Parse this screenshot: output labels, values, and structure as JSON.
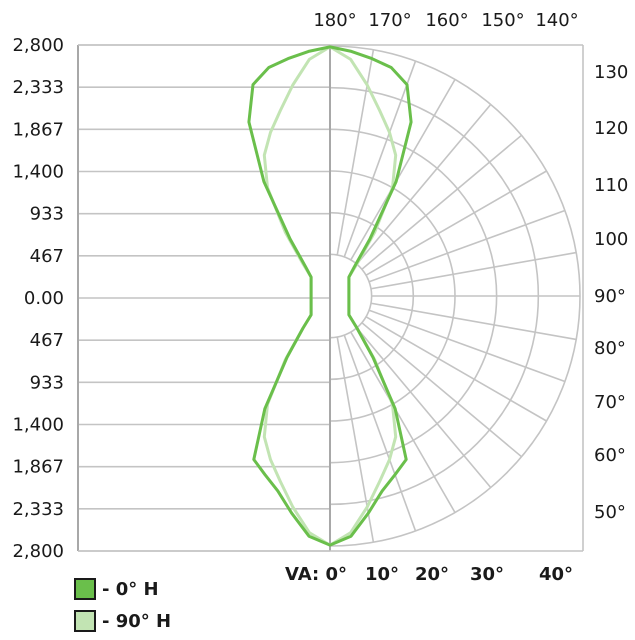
{
  "chart_data": {
    "type": "polar-luminous-intensity",
    "left_axis_labels": [
      "2,800",
      "2,333",
      "1,867",
      "1,400",
      "933",
      "467",
      "0.00",
      "467",
      "933",
      "1,400",
      "1,867",
      "2,333",
      "2,800"
    ],
    "top_angle_labels": [
      "180°",
      "170°",
      "160°",
      "150°",
      "140°"
    ],
    "right_angle_labels": [
      "130",
      "120",
      "110",
      "100",
      "90°",
      "80°",
      "70°",
      "60°",
      "50°"
    ],
    "bottom_angle_labels": [
      "VA: 0°",
      "10°",
      "20°",
      "30°",
      "40°"
    ],
    "r_max": 2800,
    "series": [
      {
        "name": "- 0° H",
        "color": "#6abf4b",
        "points": [
          [
            0,
            2790
          ],
          [
            5,
            2700
          ],
          [
            10,
            2470
          ],
          [
            15,
            2260
          ],
          [
            20,
            2130
          ],
          [
            25,
            2020
          ],
          [
            30,
            1460
          ],
          [
            35,
            840
          ],
          [
            40,
            470
          ],
          [
            45,
            300
          ],
          [
            135,
            300
          ],
          [
            140,
            420
          ],
          [
            145,
            780
          ],
          [
            150,
            1480
          ],
          [
            155,
            2150
          ],
          [
            160,
            2520
          ],
          [
            165,
            2650
          ],
          [
            170,
            2700
          ],
          [
            175,
            2750
          ],
          [
            180,
            2790
          ]
        ]
      },
      {
        "name": "- 90° H",
        "color": "#c2e4b3",
        "points": [
          [
            0,
            2790
          ],
          [
            5,
            2660
          ],
          [
            10,
            2400
          ],
          [
            15,
            2150
          ],
          [
            20,
            1950
          ],
          [
            25,
            1740
          ],
          [
            30,
            1400
          ],
          [
            35,
            870
          ],
          [
            40,
            470
          ],
          [
            45,
            300
          ],
          [
            135,
            300
          ],
          [
            140,
            470
          ],
          [
            145,
            870
          ],
          [
            150,
            1400
          ],
          [
            155,
            1740
          ],
          [
            160,
            1950
          ],
          [
            165,
            2150
          ],
          [
            170,
            2400
          ],
          [
            175,
            2660
          ],
          [
            180,
            2790
          ]
        ]
      }
    ],
    "legend": [
      "- 0° H",
      "- 90° H"
    ]
  }
}
